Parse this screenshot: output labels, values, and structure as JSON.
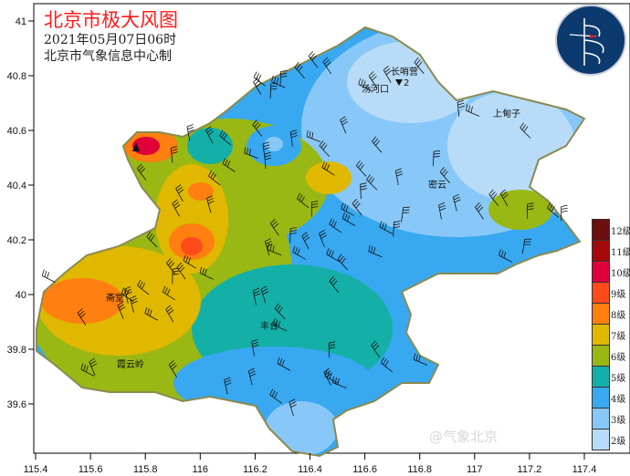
{
  "header": {
    "title": "北京市极大风图",
    "datetime": "2021年05月07日06时",
    "producer": "北京市气象信息中心制"
  },
  "logo": {
    "text": "BEIJING METEOROLOGICAL SERVICE",
    "cn": "北京市气象局"
  },
  "axes": {
    "x_ticks": [
      "115.4",
      "115.6",
      "115.8",
      "116",
      "116.2",
      "116.4",
      "116.6",
      "116.8",
      "117",
      "117.2",
      "117.4"
    ],
    "y_ticks": [
      "41",
      "40.8",
      "40.6",
      "40.4",
      "40.2",
      "40",
      "39.8",
      "39.6"
    ]
  },
  "legend": [
    {
      "label": "12级",
      "color": "#6b0f0f"
    },
    {
      "label": "11级",
      "color": "#a50a0a"
    },
    {
      "label": "10级",
      "color": "#e0003a"
    },
    {
      "label": "9级",
      "color": "#ff4a1a"
    },
    {
      "label": "8级",
      "color": "#ff7f10"
    },
    {
      "label": "7级",
      "color": "#e0b800"
    },
    {
      "label": "6级",
      "color": "#99b814"
    },
    {
      "label": "5级",
      "color": "#14b0a8"
    },
    {
      "label": "4级",
      "color": "#38a8f0"
    },
    {
      "label": "3级",
      "color": "#88c8f8"
    },
    {
      "label": "2级",
      "color": "#b8dcf8"
    }
  ],
  "places": [
    {
      "name": "长哨营",
      "value": "2"
    },
    {
      "name": "汤河口"
    },
    {
      "name": "上甸子"
    },
    {
      "name": "密云"
    },
    {
      "name": "丰台"
    },
    {
      "name": "霞云岭"
    },
    {
      "name": "斋堂"
    }
  ],
  "watermark": "@气象北京"
}
